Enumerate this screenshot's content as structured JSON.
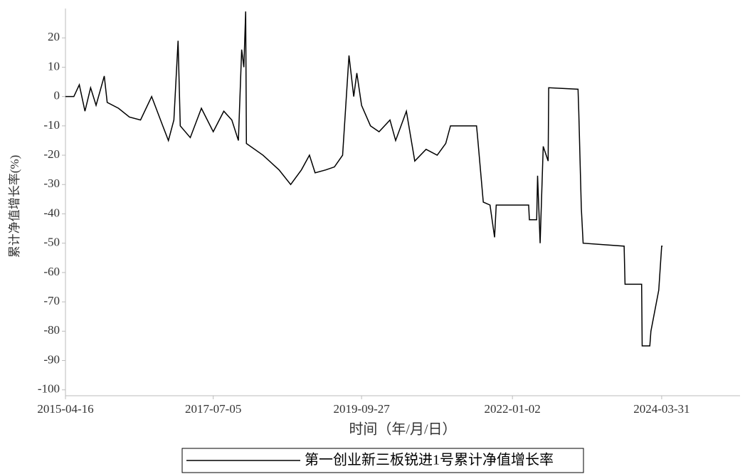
{
  "chart_data": {
    "type": "line",
    "xlabel": "时间（年/月/日）",
    "ylabel": "累计净值增长率(%)",
    "x": [
      "2015-04-16",
      "2015-06-01",
      "2015-07-01",
      "2015-08-01",
      "2015-09-01",
      "2015-10-01",
      "2015-11-15",
      "2015-12-01",
      "2016-02-01",
      "2016-04-01",
      "2016-06-01",
      "2016-08-01",
      "2016-10-01",
      "2016-11-01",
      "2016-12-01",
      "2016-12-24",
      "2017-01-05",
      "2017-03-01",
      "2017-05-01",
      "2017-07-05",
      "2017-09-01",
      "2017-10-15",
      "2017-11-20",
      "2017-12-08",
      "2017-12-20",
      "2017-12-30",
      "2018-01-03",
      "2018-04-04",
      "2018-07-01",
      "2018-09-03",
      "2018-11-01",
      "2018-12-15",
      "2019-01-15",
      "2019-03-15",
      "2019-05-01",
      "2019-06-15",
      "2019-07-20",
      "2019-08-15",
      "2019-09-01",
      "2019-09-27",
      "2019-11-15",
      "2020-01-01",
      "2020-03-01",
      "2020-04-01",
      "2020-05-30",
      "2020-07-15",
      "2020-09-15",
      "2020-11-15",
      "2021-01-01",
      "2021-01-27",
      "2021-06-19",
      "2021-06-25",
      "2021-07-26",
      "2021-09-01",
      "2021-09-26",
      "2021-10-05",
      "2022-04-01",
      "2022-04-05",
      "2022-05-15",
      "2022-05-20",
      "2022-06-03",
      "2022-06-20",
      "2022-07-17",
      "2022-07-20",
      "2022-12-28",
      "2023-01-01",
      "2023-01-15",
      "2023-01-25",
      "2023-09-07",
      "2023-09-12",
      "2023-12-12",
      "2023-12-15",
      "2024-01-26",
      "2024-02-01",
      "2024-03-15",
      "2024-03-31",
      "2024-04-05"
    ],
    "series": [
      {
        "name": "第一创业新三板锐进1号累计净值增长率",
        "color": "#000000",
        "values": [
          0,
          0,
          4,
          -5,
          3,
          -3,
          7,
          -2,
          -4,
          -7,
          -8,
          0,
          -10,
          -15,
          -8,
          19,
          -10,
          -14,
          -4,
          -12,
          -5,
          -8,
          -15,
          16,
          10,
          29,
          -16,
          -20,
          -25,
          -30,
          -25,
          -20,
          -26,
          -25,
          -24,
          -20,
          14,
          0,
          8,
          -3,
          -10,
          -12,
          -8,
          -15,
          -5,
          -22,
          -18,
          -20,
          -16,
          -10,
          -10,
          -14,
          -36,
          -37,
          -48,
          -37,
          -37,
          -42,
          -42,
          -27,
          -50,
          -17,
          -22,
          3,
          2.5,
          -5,
          -38,
          -50,
          -51,
          -64,
          -64,
          -85,
          -85,
          -80,
          -66,
          -51,
          -51
        ]
      }
    ],
    "xlim": [
      "2015-04-16",
      "2025-06-04"
    ],
    "xticks": [
      "2015-04-16",
      "2017-07-05",
      "2019-09-27",
      "2022-01-02",
      "2024-03-31"
    ],
    "ylim": [
      -102,
      30
    ],
    "yticks": [
      20,
      10,
      0,
      -10,
      -20,
      -30,
      -40,
      -50,
      -60,
      -70,
      -80,
      -90,
      -100
    ],
    "legend": "bottom"
  }
}
